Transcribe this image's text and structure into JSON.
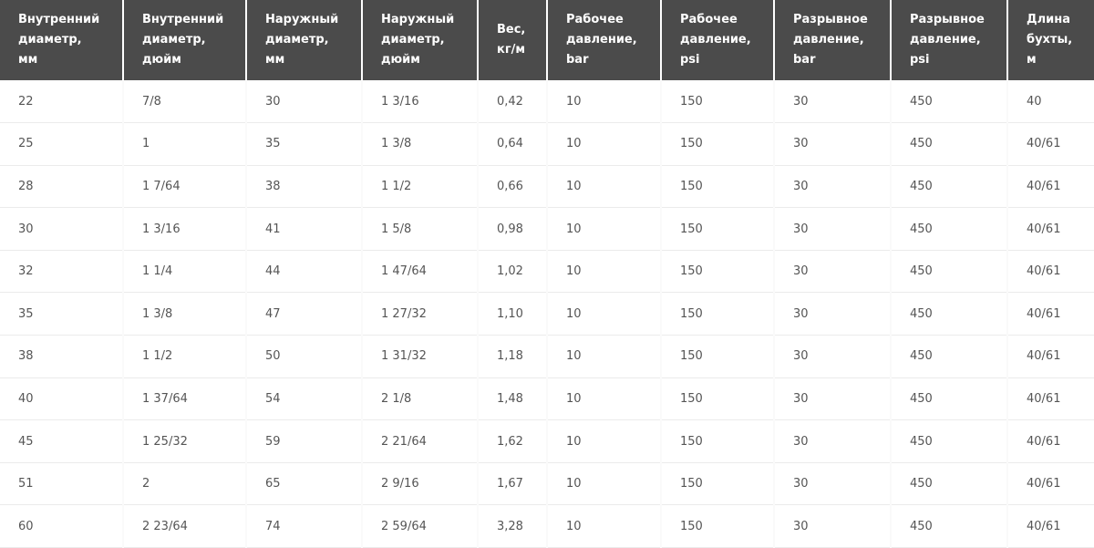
{
  "table": {
    "columns": [
      "Внутренний диаметр, мм",
      "Внутренний диаметр, дюйм",
      "Наружный диаметр, мм",
      "Наружный диаметр, дюйм",
      "Вес, кг/м",
      "Рабочее давление, bar",
      "Рабочее давление, psi",
      "Разрывное давление, bar",
      "Разрывное давление, psi",
      "Длина бухты, м"
    ],
    "rows": [
      [
        "22",
        "7/8",
        "30",
        "1 3/16",
        "0,42",
        "10",
        "150",
        "30",
        "450",
        "40"
      ],
      [
        "25",
        "1",
        "35",
        "1 3/8",
        "0,64",
        "10",
        "150",
        "30",
        "450",
        "40/61"
      ],
      [
        "28",
        "1 7/64",
        "38",
        "1 1/2",
        "0,66",
        "10",
        "150",
        "30",
        "450",
        "40/61"
      ],
      [
        "30",
        "1 3/16",
        "41",
        "1 5/8",
        "0,98",
        "10",
        "150",
        "30",
        "450",
        "40/61"
      ],
      [
        "32",
        "1 1/4",
        "44",
        "1 47/64",
        "1,02",
        "10",
        "150",
        "30",
        "450",
        "40/61"
      ],
      [
        "35",
        "1 3/8",
        "47",
        "1 27/32",
        "1,10",
        "10",
        "150",
        "30",
        "450",
        "40/61"
      ],
      [
        "38",
        "1 1/2",
        "50",
        "1 31/32",
        "1,18",
        "10",
        "150",
        "30",
        "450",
        "40/61"
      ],
      [
        "40",
        "1 37/64",
        "54",
        "2 1/8",
        "1,48",
        "10",
        "150",
        "30",
        "450",
        "40/61"
      ],
      [
        "45",
        "1 25/32",
        "59",
        "2 21/64",
        "1,62",
        "10",
        "150",
        "30",
        "450",
        "40/61"
      ],
      [
        "51",
        "2",
        "65",
        "2 9/16",
        "1,67",
        "10",
        "150",
        "30",
        "450",
        "40/61"
      ],
      [
        "60",
        "2 23/64",
        "74",
        "2 59/64",
        "3,28",
        "10",
        "150",
        "30",
        "450",
        "40/61"
      ]
    ]
  }
}
